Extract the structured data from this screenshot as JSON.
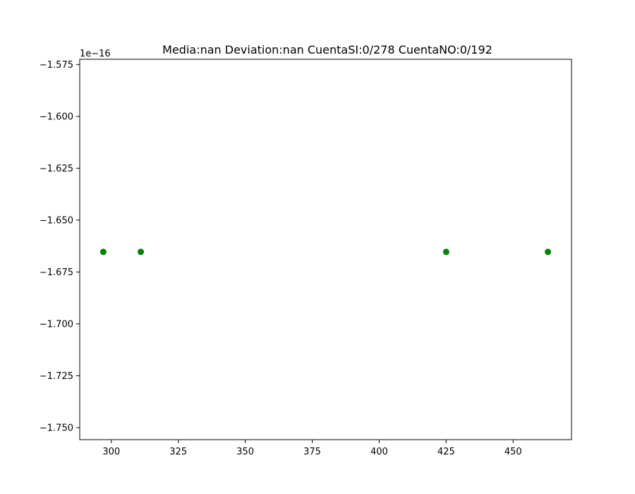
{
  "chart_data": {
    "type": "scatter",
    "title": "Media:nan Deviation:nan CuentaSI:0/278 CuentaNO:0/192",
    "xlabel": "",
    "ylabel": "",
    "y_offset_label": "1e−16",
    "xlim": [
      288.2,
      471.8
    ],
    "ylim": [
      -1.7558,
      -1.5725
    ],
    "x_ticks": [
      300,
      325,
      350,
      375,
      400,
      425,
      450
    ],
    "x_tick_labels": [
      "300",
      "325",
      "350",
      "375",
      "400",
      "425",
      "450"
    ],
    "y_ticks": [
      -1.575,
      -1.6,
      -1.625,
      -1.65,
      -1.675,
      -1.7,
      -1.725,
      -1.75
    ],
    "y_tick_labels": [
      "−1.575",
      "−1.600",
      "−1.625",
      "−1.650",
      "−1.675",
      "−1.700",
      "−1.725",
      "−1.750"
    ],
    "grid": false,
    "legend": false,
    "marker_color": "#008000",
    "series": [
      {
        "x": [
          297,
          311,
          425,
          463
        ],
        "y": [
          -1.6653,
          -1.6653,
          -1.6653,
          -1.6653
        ]
      }
    ]
  }
}
